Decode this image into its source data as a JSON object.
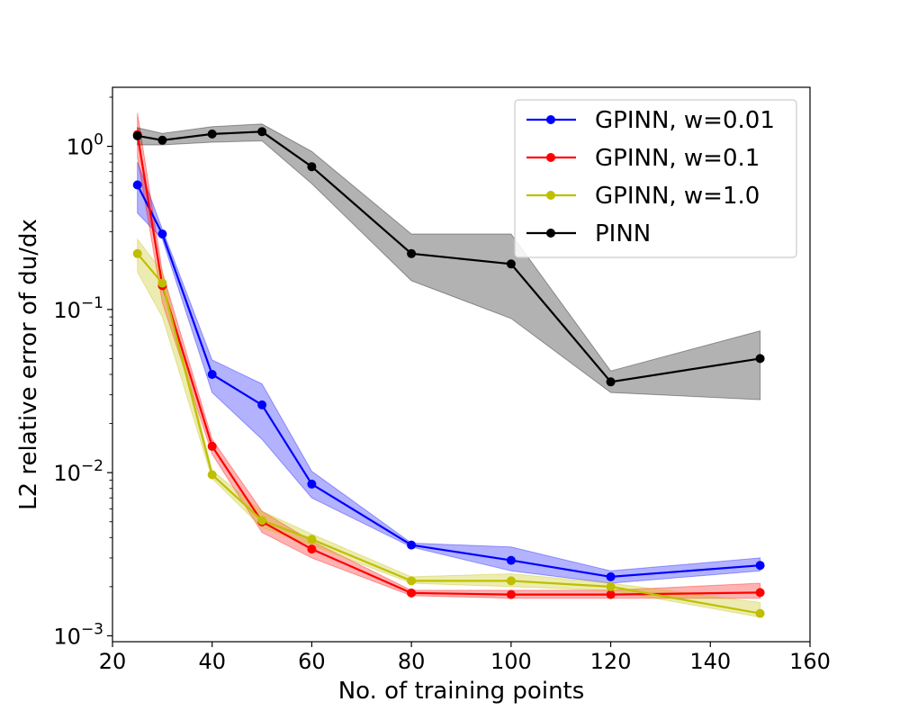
{
  "chart_data": {
    "type": "line",
    "xlabel": "No. of training points",
    "ylabel": "L2 relative error of du/dx",
    "xlim": [
      20,
      160
    ],
    "ylim": [
      0.00092,
      2.3
    ],
    "yscale": "log",
    "grid": false,
    "legend_position": "upper-right",
    "x_ticks": [
      "20",
      "40",
      "60",
      "80",
      "100",
      "120",
      "140",
      "160"
    ],
    "x_tick_values": [
      20,
      40,
      60,
      80,
      100,
      120,
      140,
      160
    ],
    "y_ticks": [
      {
        "value": 1,
        "base": "10",
        "exp": "0"
      },
      {
        "value": 0.1,
        "base": "10",
        "exp": "−1"
      },
      {
        "value": 0.01,
        "base": "10",
        "exp": "−2"
      },
      {
        "value": 0.001,
        "base": "10",
        "exp": "−3"
      }
    ],
    "x": [
      25,
      30,
      40,
      50,
      60,
      80,
      100,
      120,
      150
    ],
    "series": [
      {
        "name": "GPINN, w=0.01",
        "color": "#0000ff",
        "values": [
          0.58,
          0.29,
          0.04,
          0.026,
          0.0085,
          0.0036,
          0.0029,
          0.0023,
          0.0027
        ],
        "upper": [
          0.8,
          0.31,
          0.049,
          0.035,
          0.0102,
          0.0037,
          0.0035,
          0.0025,
          0.003
        ],
        "lower": [
          0.39,
          0.27,
          0.031,
          0.016,
          0.007,
          0.0035,
          0.0025,
          0.0021,
          0.0025
        ]
      },
      {
        "name": "GPINN, w=0.1",
        "color": "#ff0000",
        "values": [
          1.18,
          0.14,
          0.0145,
          0.005,
          0.0034,
          0.00183,
          0.00179,
          0.00179,
          0.00184
        ],
        "upper": [
          1.6,
          0.17,
          0.016,
          0.0058,
          0.0038,
          0.0019,
          0.0019,
          0.0019,
          0.0021
        ],
        "lower": [
          0.85,
          0.11,
          0.013,
          0.0043,
          0.003,
          0.00176,
          0.0017,
          0.0017,
          0.0017
        ]
      },
      {
        "name": "GPINN, w=1.0",
        "color": "#bfbf00",
        "values": [
          0.22,
          0.145,
          0.0097,
          0.0051,
          0.0039,
          0.00217,
          0.00217,
          0.002,
          0.00137
        ],
        "upper": [
          0.27,
          0.17,
          0.0103,
          0.0058,
          0.0042,
          0.0023,
          0.0024,
          0.0021,
          0.0016
        ],
        "lower": [
          0.17,
          0.09,
          0.0092,
          0.0046,
          0.0036,
          0.0021,
          0.002,
          0.0019,
          0.0013
        ]
      },
      {
        "name": "PINN",
        "color": "#000000",
        "values": [
          1.16,
          1.09,
          1.19,
          1.23,
          0.75,
          0.22,
          0.19,
          0.036,
          0.05
        ],
        "upper": [
          1.3,
          1.2,
          1.32,
          1.37,
          0.93,
          0.29,
          0.29,
          0.042,
          0.074
        ],
        "lower": [
          1.02,
          1.02,
          1.06,
          1.08,
          0.59,
          0.15,
          0.088,
          0.031,
          0.028
        ]
      }
    ]
  }
}
